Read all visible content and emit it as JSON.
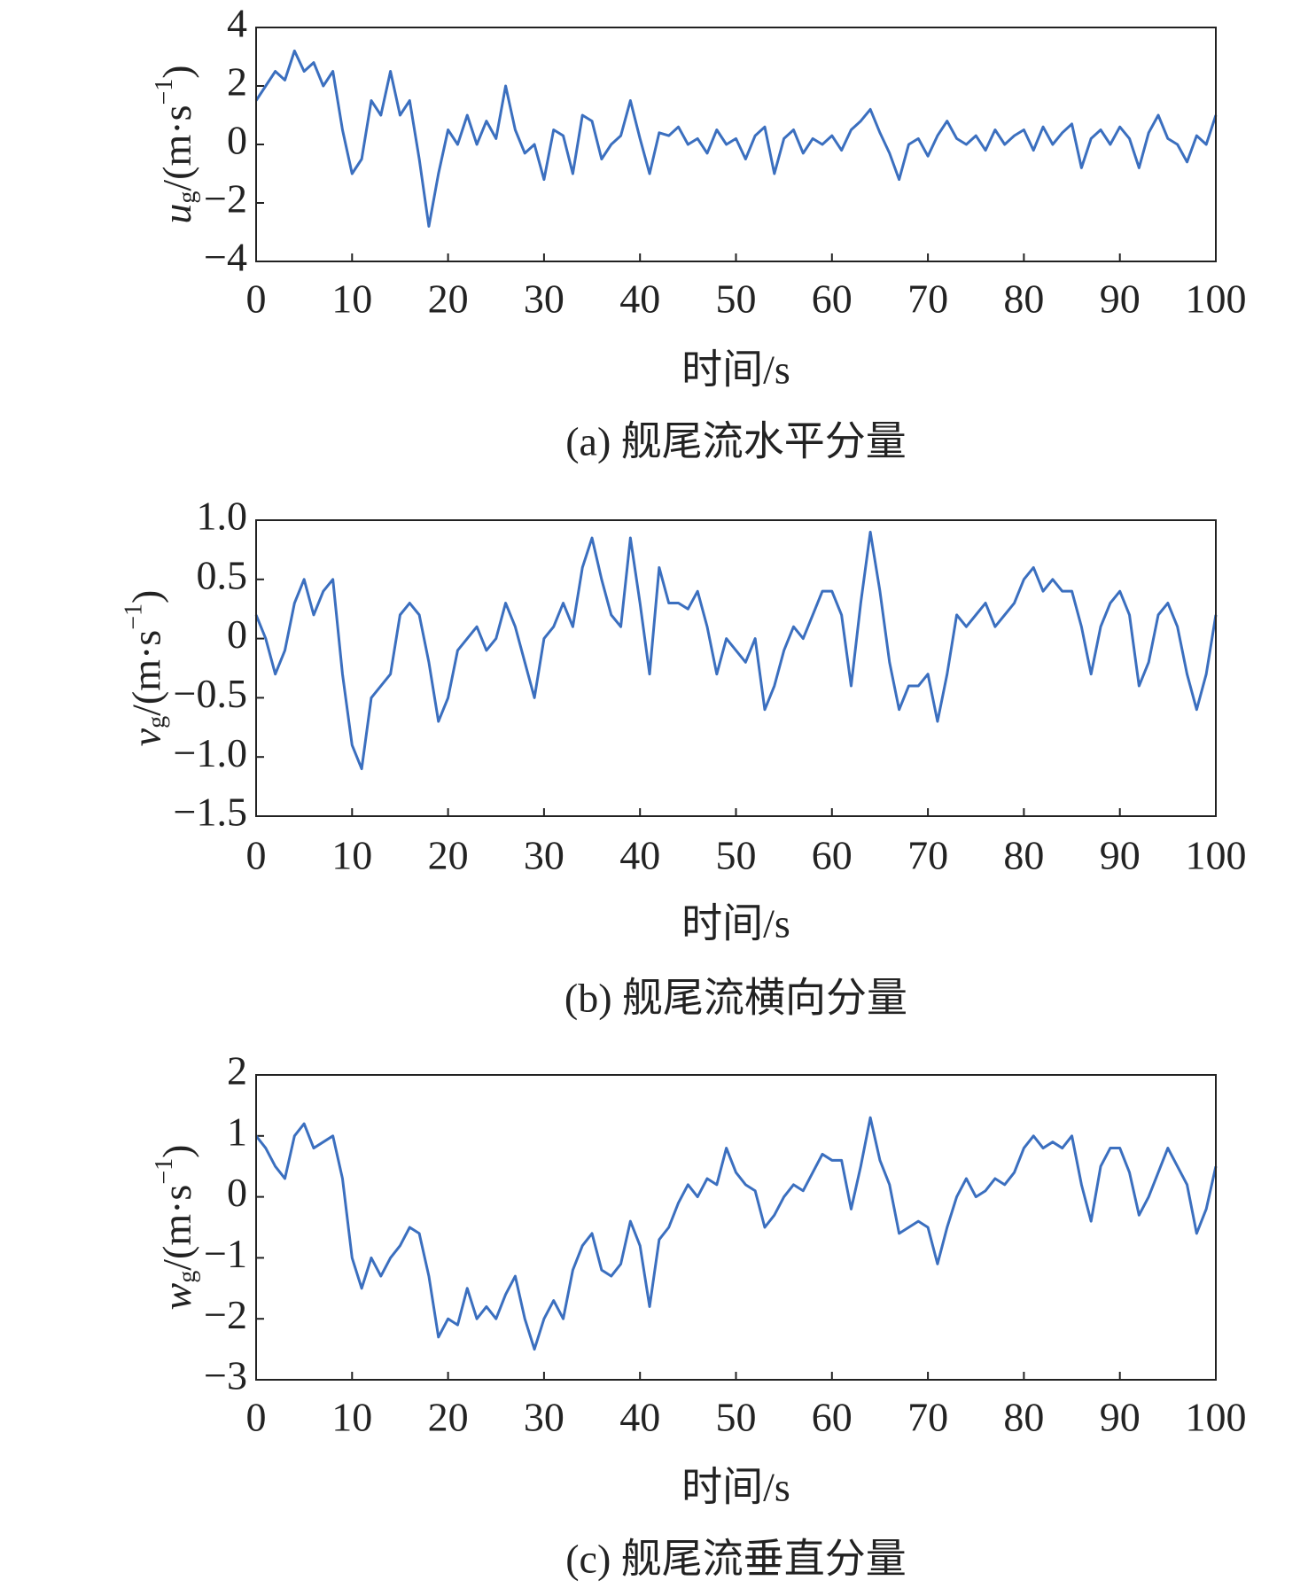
{
  "chart_data": [
    {
      "type": "line",
      "title": "(a) 舰尾流水平分量",
      "xlabel": "时间/s",
      "ylabel": "u",
      "ylabel_sub": "g",
      "ylabel_unit": "/(m·s",
      "ylabel_sup": "−1",
      "ylabel_end": ")",
      "color": "#3b6fbf",
      "xlim": [
        0,
        100
      ],
      "xticks": [
        0,
        10,
        20,
        30,
        40,
        50,
        60,
        70,
        80,
        90,
        100
      ],
      "ylim": [
        -4,
        4
      ],
      "yticks": [
        {
          "value": -4,
          "label": "−4"
        },
        {
          "value": -2,
          "label": "−2"
        },
        0,
        2,
        4
      ],
      "x": [
        0,
        1,
        2,
        3,
        4,
        5,
        6,
        7,
        8,
        9,
        10,
        11,
        12,
        13,
        14,
        15,
        16,
        17,
        18,
        19,
        20,
        21,
        22,
        23,
        24,
        25,
        26,
        27,
        28,
        29,
        30,
        31,
        32,
        33,
        34,
        35,
        36,
        37,
        38,
        39,
        40,
        41,
        42,
        43,
        44,
        45,
        46,
        47,
        48,
        49,
        50,
        51,
        52,
        53,
        54,
        55,
        56,
        57,
        58,
        59,
        60,
        61,
        62,
        63,
        64,
        65,
        66,
        67,
        68,
        69,
        70,
        71,
        72,
        73,
        74,
        75,
        76,
        77,
        78,
        79,
        80,
        81,
        82,
        83,
        84,
        85,
        86,
        87,
        88,
        89,
        90,
        91,
        92,
        93,
        94,
        95,
        96,
        97,
        98,
        99,
        100
      ],
      "values": [
        1.5,
        2,
        2.5,
        2.2,
        3.2,
        2.5,
        2.8,
        2,
        2.5,
        0.5,
        -1,
        -0.5,
        1.5,
        1,
        2.5,
        1,
        1.5,
        -0.5,
        -2.8,
        -1,
        0.5,
        0,
        1,
        0,
        0.8,
        0.2,
        2,
        0.5,
        -0.3,
        0,
        -1.2,
        0.5,
        0.3,
        -1,
        1,
        0.8,
        -0.5,
        0,
        0.3,
        1.5,
        0.2,
        -1,
        0.4,
        0.3,
        0.6,
        0,
        0.2,
        -0.3,
        0.5,
        0,
        0.2,
        -0.5,
        0.3,
        0.6,
        -1,
        0.2,
        0.5,
        -0.3,
        0.2,
        0,
        0.3,
        -0.2,
        0.5,
        0.8,
        1.2,
        0.4,
        -0.3,
        -1.2,
        0,
        0.2,
        -0.4,
        0.3,
        0.8,
        0.2,
        0,
        0.3,
        -0.2,
        0.5,
        0,
        0.3,
        0.5,
        -0.2,
        0.6,
        0,
        0.4,
        0.7,
        -0.8,
        0.2,
        0.5,
        0,
        0.6,
        0.2,
        -0.8,
        0.4,
        1,
        0.2,
        0,
        -0.6,
        0.3,
        0,
        1
      ]
    },
    {
      "type": "line",
      "title": "(b) 舰尾流横向分量",
      "xlabel": "时间/s",
      "ylabel": "v",
      "ylabel_sub": "g",
      "ylabel_unit": "/(m·s",
      "ylabel_sup": "−1",
      "ylabel_end": ")",
      "color": "#3b6fbf",
      "xlim": [
        0,
        100
      ],
      "xticks": [
        0,
        10,
        20,
        30,
        40,
        50,
        60,
        70,
        80,
        90,
        100
      ],
      "ylim": [
        -1.5,
        1
      ],
      "yticks": [
        {
          "value": -1.5,
          "label": "−1.5"
        },
        {
          "value": -1,
          "label": "−1.0"
        },
        {
          "value": -0.5,
          "label": "−0.5"
        },
        0,
        0.5,
        {
          "value": 1,
          "label": "1.0"
        }
      ],
      "x": [
        0,
        1,
        2,
        3,
        4,
        5,
        6,
        7,
        8,
        9,
        10,
        11,
        12,
        13,
        14,
        15,
        16,
        17,
        18,
        19,
        20,
        21,
        22,
        23,
        24,
        25,
        26,
        27,
        28,
        29,
        30,
        31,
        32,
        33,
        34,
        35,
        36,
        37,
        38,
        39,
        40,
        41,
        42,
        43,
        44,
        45,
        46,
        47,
        48,
        49,
        50,
        51,
        52,
        53,
        54,
        55,
        56,
        57,
        58,
        59,
        60,
        61,
        62,
        63,
        64,
        65,
        66,
        67,
        68,
        69,
        70,
        71,
        72,
        73,
        74,
        75,
        76,
        77,
        78,
        79,
        80,
        81,
        82,
        83,
        84,
        85,
        86,
        87,
        88,
        89,
        90,
        91,
        92,
        93,
        94,
        95,
        96,
        97,
        98,
        99,
        100
      ],
      "values": [
        0.2,
        0,
        -0.3,
        -0.1,
        0.3,
        0.5,
        0.2,
        0.4,
        0.5,
        -0.3,
        -0.9,
        -1.1,
        -0.5,
        -0.4,
        -0.3,
        0.2,
        0.3,
        0.2,
        -0.2,
        -0.7,
        -0.5,
        -0.1,
        0,
        0.1,
        -0.1,
        0,
        0.3,
        0.1,
        -0.2,
        -0.5,
        0,
        0.1,
        0.3,
        0.1,
        0.6,
        0.85,
        0.5,
        0.2,
        0.1,
        0.85,
        0.3,
        -0.3,
        0.6,
        0.3,
        0.3,
        0.25,
        0.4,
        0.1,
        -0.3,
        0,
        -0.1,
        -0.2,
        0,
        -0.6,
        -0.4,
        -0.1,
        0.1,
        0,
        0.2,
        0.4,
        0.4,
        0.2,
        -0.4,
        0.3,
        0.9,
        0.4,
        -0.2,
        -0.6,
        -0.4,
        -0.4,
        -0.3,
        -0.7,
        -0.3,
        0.2,
        0.1,
        0.2,
        0.3,
        0.1,
        0.2,
        0.3,
        0.5,
        0.6,
        0.4,
        0.5,
        0.4,
        0.4,
        0.1,
        -0.3,
        0.1,
        0.3,
        0.4,
        0.2,
        -0.4,
        -0.2,
        0.2,
        0.3,
        0.1,
        -0.3,
        -0.6,
        -0.3,
        0.2
      ]
    },
    {
      "type": "line",
      "title": "(c) 舰尾流垂直分量",
      "xlabel": "时间/s",
      "ylabel": "w",
      "ylabel_sub": "g",
      "ylabel_unit": "/(m·s",
      "ylabel_sup": "−1",
      "ylabel_end": ")",
      "color": "#3b6fbf",
      "xlim": [
        0,
        100
      ],
      "xticks": [
        0,
        10,
        20,
        30,
        40,
        50,
        60,
        70,
        80,
        90,
        100
      ],
      "ylim": [
        -3,
        2
      ],
      "yticks": [
        {
          "value": -3,
          "label": "−3"
        },
        {
          "value": -2,
          "label": "−2"
        },
        {
          "value": -1,
          "label": "−1"
        },
        0,
        1,
        2
      ],
      "x": [
        0,
        1,
        2,
        3,
        4,
        5,
        6,
        7,
        8,
        9,
        10,
        11,
        12,
        13,
        14,
        15,
        16,
        17,
        18,
        19,
        20,
        21,
        22,
        23,
        24,
        25,
        26,
        27,
        28,
        29,
        30,
        31,
        32,
        33,
        34,
        35,
        36,
        37,
        38,
        39,
        40,
        41,
        42,
        43,
        44,
        45,
        46,
        47,
        48,
        49,
        50,
        51,
        52,
        53,
        54,
        55,
        56,
        57,
        58,
        59,
        60,
        61,
        62,
        63,
        64,
        65,
        66,
        67,
        68,
        69,
        70,
        71,
        72,
        73,
        74,
        75,
        76,
        77,
        78,
        79,
        80,
        81,
        82,
        83,
        84,
        85,
        86,
        87,
        88,
        89,
        90,
        91,
        92,
        93,
        94,
        95,
        96,
        97,
        98,
        99,
        100
      ],
      "values": [
        1,
        0.8,
        0.5,
        0.3,
        1,
        1.2,
        0.8,
        0.9,
        1,
        0.3,
        -1,
        -1.5,
        -1,
        -1.3,
        -1,
        -0.8,
        -0.5,
        -0.6,
        -1.3,
        -2.3,
        -2,
        -2.1,
        -1.5,
        -2,
        -1.8,
        -2,
        -1.6,
        -1.3,
        -2,
        -2.5,
        -2,
        -1.7,
        -2,
        -1.2,
        -0.8,
        -0.6,
        -1.2,
        -1.3,
        -1.1,
        -0.4,
        -0.8,
        -1.8,
        -0.7,
        -0.5,
        -0.1,
        0.2,
        0,
        0.3,
        0.2,
        0.8,
        0.4,
        0.2,
        0.1,
        -0.5,
        -0.3,
        0,
        0.2,
        0.1,
        0.4,
        0.7,
        0.6,
        0.6,
        -0.2,
        0.5,
        1.3,
        0.6,
        0.2,
        -0.6,
        -0.5,
        -0.4,
        -0.5,
        -1.1,
        -0.5,
        0,
        0.3,
        0,
        0.1,
        0.3,
        0.2,
        0.4,
        0.8,
        1,
        0.8,
        0.9,
        0.8,
        1,
        0.2,
        -0.4,
        0.5,
        0.8,
        0.8,
        0.4,
        -0.3,
        0,
        0.4,
        0.8,
        0.5,
        0.2,
        -0.6,
        -0.2,
        0.5
      ]
    }
  ]
}
